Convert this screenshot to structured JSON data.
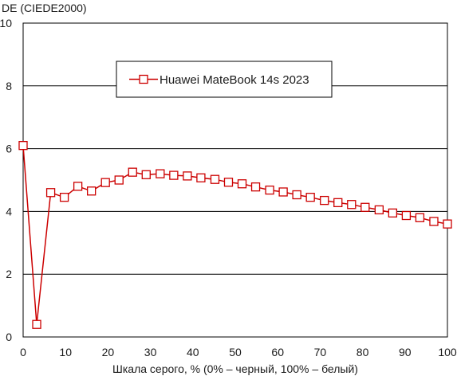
{
  "chart_data": {
    "type": "line",
    "ylabel": "DE (CIEDE2000)",
    "xlabel": "Шкала серого, % (0% – черный, 100% – белый)",
    "xlim": [
      0,
      100
    ],
    "ylim": [
      0,
      10
    ],
    "x_ticks": [
      0,
      10,
      20,
      30,
      40,
      50,
      60,
      70,
      80,
      90,
      100
    ],
    "y_ticks": [
      0,
      2,
      4,
      6,
      8,
      10
    ],
    "grid": "horizontal",
    "legend_position": "top-center",
    "series": [
      {
        "name": "Huawei MateBook 14s 2023",
        "color": "#cc0000",
        "marker": "hollow-square",
        "x": [
          0,
          3.2,
          6.5,
          9.7,
          12.9,
          16.1,
          19.4,
          22.6,
          25.8,
          29.0,
          32.3,
          35.5,
          38.7,
          41.9,
          45.2,
          48.4,
          51.6,
          54.8,
          58.1,
          61.3,
          64.5,
          67.7,
          71.0,
          74.2,
          77.4,
          80.6,
          83.9,
          87.1,
          90.3,
          93.5,
          96.8,
          100
        ],
        "y": [
          6.1,
          0.4,
          4.6,
          4.45,
          4.8,
          4.65,
          4.92,
          5.0,
          5.25,
          5.17,
          5.2,
          5.15,
          5.13,
          5.07,
          5.02,
          4.93,
          4.88,
          4.78,
          4.68,
          4.62,
          4.53,
          4.45,
          4.35,
          4.28,
          4.22,
          4.13,
          4.05,
          3.95,
          3.87,
          3.8,
          3.68,
          3.6
        ]
      }
    ]
  }
}
